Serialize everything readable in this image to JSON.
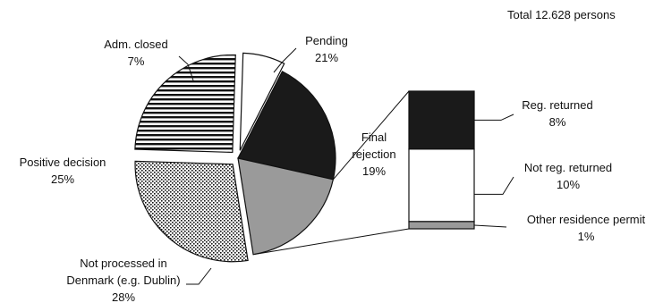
{
  "chart_data": {
    "type": "pie",
    "annotation": "Total 12.628 persons",
    "slices": [
      {
        "label_lines": [
          "Pending"
        ],
        "pct_text": "21%",
        "value": 21,
        "pattern": "solid-dark",
        "exploded": false
      },
      {
        "label_lines": [
          "Final",
          "rejection"
        ],
        "pct_text": "19%",
        "value": 19,
        "pattern": "solid-gray",
        "exploded": false
      },
      {
        "label_lines": [
          "Not processed in",
          "Denmark (e.g. Dublin)"
        ],
        "pct_text": "28%",
        "value": 28,
        "pattern": "dots",
        "exploded": true
      },
      {
        "label_lines": [
          "Positive decision"
        ],
        "pct_text": "25%",
        "value": 25,
        "pattern": "horizontal-stripes",
        "exploded": true
      },
      {
        "label_lines": [
          "Adm. closed"
        ],
        "pct_text": "7%",
        "value": 7,
        "pattern": "white",
        "exploded": true
      }
    ],
    "breakdown": {
      "of_slice": "Final rejection",
      "segments": [
        {
          "label": "Reg. returned",
          "pct_text": "8%",
          "value": 8,
          "pattern": "solid-dark"
        },
        {
          "label": "Not reg. returned",
          "pct_text": "10%",
          "value": 10,
          "pattern": "white"
        },
        {
          "label": "Other residence permit",
          "pct_text": "1%",
          "value": 1,
          "pattern": "solid-gray"
        }
      ]
    }
  }
}
